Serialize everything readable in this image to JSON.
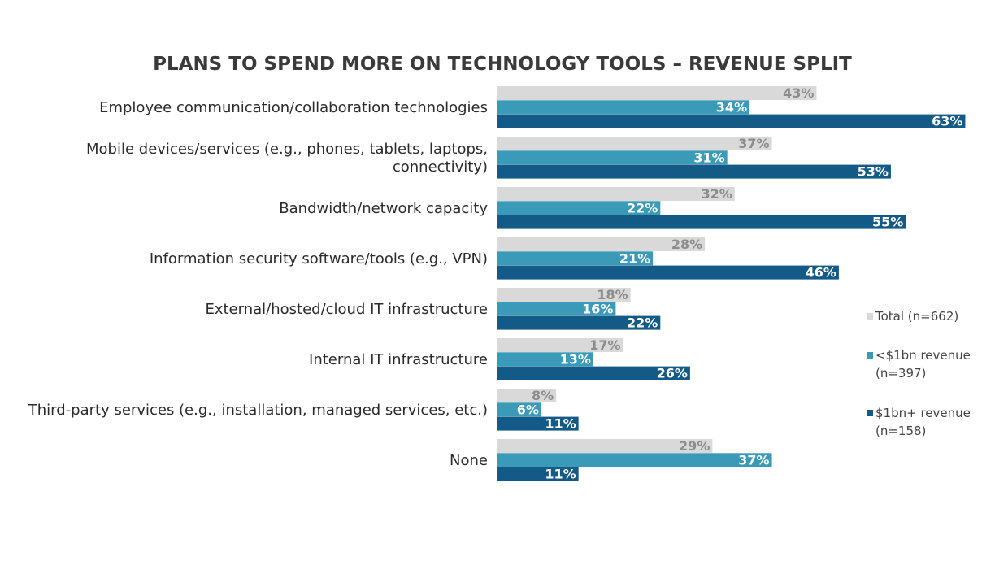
{
  "chart_data": {
    "type": "bar",
    "orientation": "horizontal",
    "title": "PLANS TO SPEND MORE ON TECHNOLOGY TOOLS – REVENUE SPLIT",
    "categories": [
      [
        "Employee communication/collaboration technologies"
      ],
      [
        "Mobile devices/services (e.g., phones, tablets, laptops,",
        "connectivity)"
      ],
      [
        "Bandwidth/network capacity"
      ],
      [
        "Information security software/tools (e.g., VPN)"
      ],
      [
        "External/hosted/cloud IT infrastructure"
      ],
      [
        "Internal IT infrastructure"
      ],
      [
        "Third-party services (e.g., installation, managed services, etc.)"
      ],
      [
        "None"
      ]
    ],
    "series": [
      {
        "name": "Total (n=662)",
        "legend_lines": [
          "Total (n=662)"
        ],
        "color": "#d9d9d9",
        "label_color": "#8c8c8c",
        "values": [
          43,
          37,
          32,
          28,
          18,
          17,
          8,
          29
        ]
      },
      {
        "name": "<$1bn revenue (n=397)",
        "legend_lines": [
          "<$1bn revenue",
          "(n=397)"
        ],
        "color": "#3a9ab8",
        "label_color": "#ffffff",
        "values": [
          34,
          31,
          22,
          21,
          16,
          13,
          6,
          37
        ]
      },
      {
        "name": "$1bn+ revenue (n=158)",
        "legend_lines": [
          "$1bn+ revenue",
          "(n=158)"
        ],
        "color": "#145a86",
        "label_color": "#ffffff",
        "values": [
          63,
          53,
          55,
          46,
          22,
          26,
          11,
          11
        ]
      }
    ],
    "value_suffix": "%",
    "xlim": [
      0,
      70
    ],
    "grid": false,
    "legend_position": "right"
  }
}
